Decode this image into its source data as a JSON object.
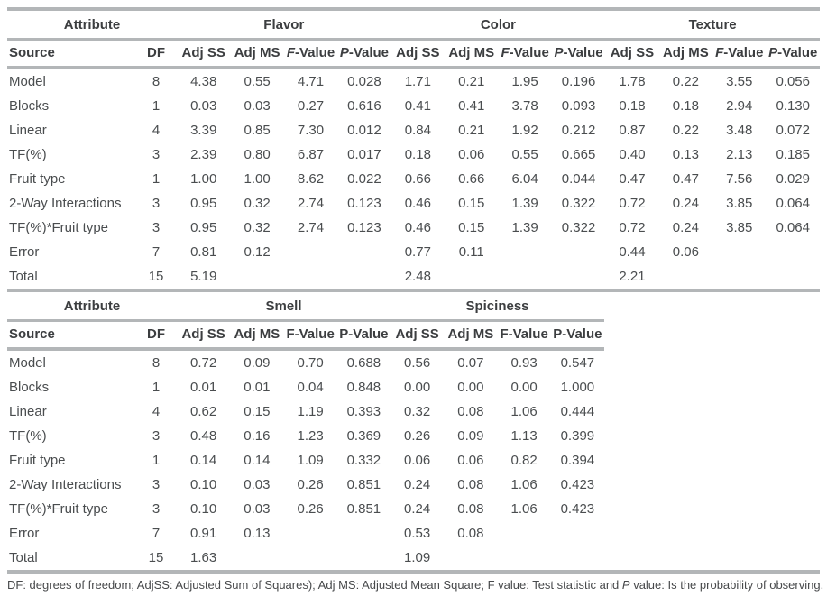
{
  "colors": {
    "rule": "#b3b6b8",
    "text": "#4a4d4f",
    "header_text": "#3c3e40",
    "background": "#ffffff"
  },
  "tables": [
    {
      "name": "flavor-color-texture-anova",
      "groups": [
        {
          "label": "Attribute",
          "span": 2
        },
        {
          "label": "Flavor",
          "span": 4
        },
        {
          "label": "Color",
          "span": 4
        },
        {
          "label": "Texture",
          "span": 4
        }
      ],
      "sub_headers": [
        {
          "label": "Source"
        },
        {
          "label": "DF"
        },
        {
          "label": "Adj SS"
        },
        {
          "label": "Adj MS"
        },
        {
          "label": "F-Value",
          "italic_first": true
        },
        {
          "label": "P-Value",
          "italic_first": true
        },
        {
          "label": "Adj SS"
        },
        {
          "label": "Adj MS"
        },
        {
          "label": "F-Value",
          "italic_first": true
        },
        {
          "label": "P-Value",
          "italic_first": true
        },
        {
          "label": "Adj SS"
        },
        {
          "label": "Adj MS"
        },
        {
          "label": "F-Value",
          "italic_first": true
        },
        {
          "label": "P-Value",
          "italic_first": true
        }
      ],
      "rows": [
        [
          "Model",
          "8",
          "4.38",
          "0.55",
          "4.71",
          "0.028",
          "1.71",
          "0.21",
          "1.95",
          "0.196",
          "1.78",
          "0.22",
          "3.55",
          "0.056"
        ],
        [
          "Blocks",
          "1",
          "0.03",
          "0.03",
          "0.27",
          "0.616",
          "0.41",
          "0.41",
          "3.78",
          "0.093",
          "0.18",
          "0.18",
          "2.94",
          "0.130"
        ],
        [
          "Linear",
          "4",
          "3.39",
          "0.85",
          "7.30",
          "0.012",
          "0.84",
          "0.21",
          "1.92",
          "0.212",
          "0.87",
          "0.22",
          "3.48",
          "0.072"
        ],
        [
          "TF(%)",
          "3",
          "2.39",
          "0.80",
          "6.87",
          "0.017",
          "0.18",
          "0.06",
          "0.55",
          "0.665",
          "0.40",
          "0.13",
          "2.13",
          "0.185"
        ],
        [
          "Fruit type",
          "1",
          "1.00",
          "1.00",
          "8.62",
          "0.022",
          "0.66",
          "0.66",
          "6.04",
          "0.044",
          "0.47",
          "0.47",
          "7.56",
          "0.029"
        ],
        [
          "2-Way Interactions",
          "3",
          "0.95",
          "0.32",
          "2.74",
          "0.123",
          "0.46",
          "0.15",
          "1.39",
          "0.322",
          "0.72",
          "0.24",
          "3.85",
          "0.064"
        ],
        [
          "TF(%)*Fruit type",
          "3",
          "0.95",
          "0.32",
          "2.74",
          "0.123",
          "0.46",
          "0.15",
          "1.39",
          "0.322",
          "0.72",
          "0.24",
          "3.85",
          "0.064"
        ],
        [
          "Error",
          "7",
          "0.81",
          "0.12",
          "",
          "",
          "0.77",
          "0.11",
          "",
          "",
          "0.44",
          "0.06",
          "",
          ""
        ],
        [
          "Total",
          "15",
          "5.19",
          "",
          "",
          "",
          "2.48",
          "",
          "",
          "",
          "2.21",
          "",
          "",
          ""
        ]
      ]
    },
    {
      "name": "smell-spiciness-anova",
      "groups": [
        {
          "label": "Attribute",
          "span": 2
        },
        {
          "label": "Smell",
          "span": 4
        },
        {
          "label": "Spiciness",
          "span": 4
        }
      ],
      "sub_headers": [
        {
          "label": "Source"
        },
        {
          "label": "DF"
        },
        {
          "label": "Adj SS"
        },
        {
          "label": "Adj MS"
        },
        {
          "label": "F-Value"
        },
        {
          "label": "P-Value"
        },
        {
          "label": "Adj SS"
        },
        {
          "label": "Adj MS"
        },
        {
          "label": "F-Value"
        },
        {
          "label": "P-Value"
        }
      ],
      "rows": [
        [
          "Model",
          "8",
          "0.72",
          "0.09",
          "0.70",
          "0.688",
          "0.56",
          "0.07",
          "0.93",
          "0.547"
        ],
        [
          "Blocks",
          "1",
          "0.01",
          "0.01",
          "0.04",
          "0.848",
          "0.00",
          "0.00",
          "0.00",
          "1.000"
        ],
        [
          "Linear",
          "4",
          "0.62",
          "0.15",
          "1.19",
          "0.393",
          "0.32",
          "0.08",
          "1.06",
          "0.444"
        ],
        [
          "TF(%)",
          "3",
          "0.48",
          "0.16",
          "1.23",
          "0.369",
          "0.26",
          "0.09",
          "1.13",
          "0.399"
        ],
        [
          "Fruit type",
          "1",
          "0.14",
          "0.14",
          "1.09",
          "0.332",
          "0.06",
          "0.06",
          "0.82",
          "0.394"
        ],
        [
          "2-Way Interactions",
          "3",
          "0.10",
          "0.03",
          "0.26",
          "0.851",
          "0.24",
          "0.08",
          "1.06",
          "0.423"
        ],
        [
          "TF(%)*Fruit type",
          "3",
          "0.10",
          "0.03",
          "0.26",
          "0.851",
          "0.24",
          "0.08",
          "1.06",
          "0.423"
        ],
        [
          "Error",
          "7",
          "0.91",
          "0.13",
          "",
          "",
          "0.53",
          "0.08",
          "",
          ""
        ],
        [
          "Total",
          "15",
          "1.63",
          "",
          "",
          "",
          "1.09",
          "",
          "",
          ""
        ]
      ]
    }
  ],
  "footnote": {
    "segments": [
      {
        "text": "DF: degrees of freedom; AdjSS: Adjusted Sum of Squares); Adj MS: Adjusted Mean Square; F value: Test statistic and "
      },
      {
        "text": "P",
        "italic": true
      },
      {
        "text": " value: Is the probability of observing."
      }
    ]
  }
}
